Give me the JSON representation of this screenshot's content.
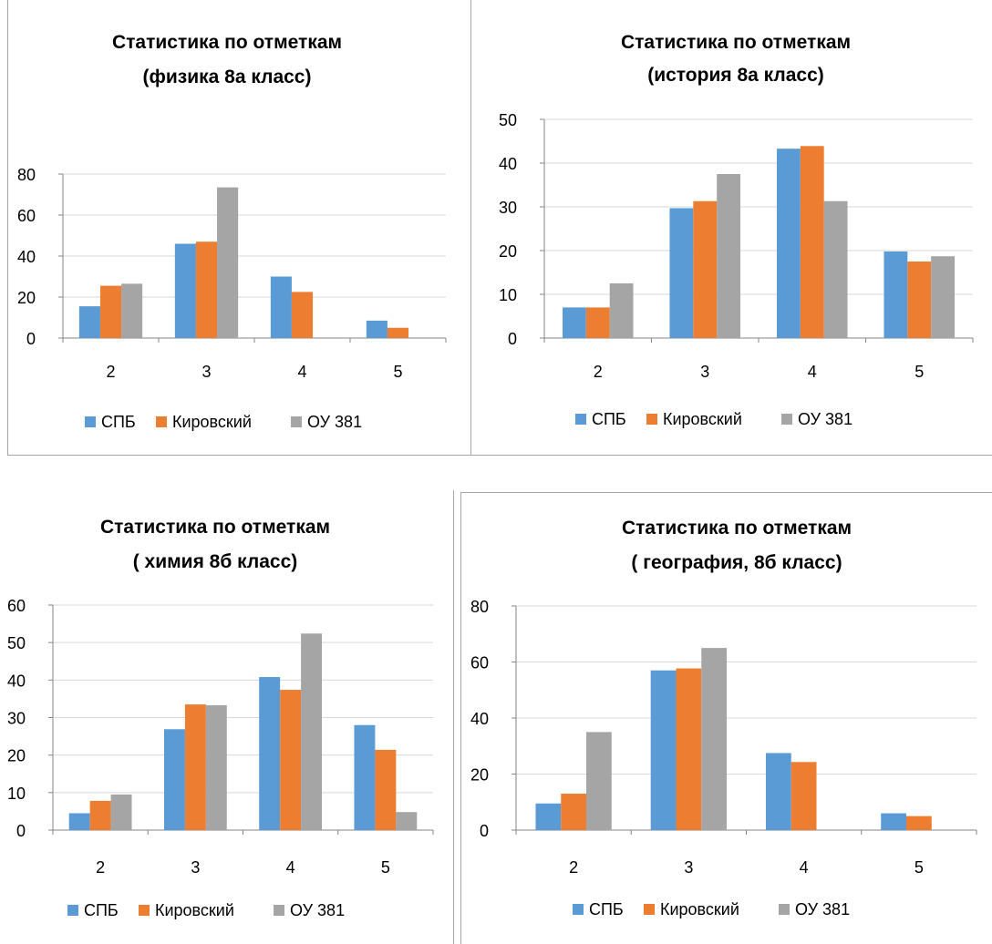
{
  "legend_labels": [
    "СПБ",
    "Кировский",
    "ОУ 381"
  ],
  "colors": [
    "#5b9bd5",
    "#ed7d31",
    "#a5a5a5"
  ],
  "chart_data": [
    {
      "type": "bar",
      "title": "Статистика по отметкам",
      "subtitle": "(физика 8а класс)",
      "categories": [
        "2",
        "3",
        "4",
        "5"
      ],
      "series": [
        {
          "name": "СПБ",
          "values": [
            15.5,
            46,
            30,
            8.5
          ]
        },
        {
          "name": "Кировский",
          "values": [
            25.5,
            47,
            22.5,
            5
          ]
        },
        {
          "name": "ОУ 381",
          "values": [
            26.5,
            73.5,
            0,
            0
          ]
        }
      ],
      "ylim": [
        0,
        80
      ],
      "yticks": [
        "0",
        "20",
        "40",
        "60",
        "80"
      ],
      "legend": "bottom",
      "grid": true
    },
    {
      "type": "bar",
      "title": "Статистика по отметкам",
      "subtitle": "(история 8а класс)",
      "categories": [
        "2",
        "3",
        "4",
        "5"
      ],
      "series": [
        {
          "name": "СПБ",
          "values": [
            7,
            29.7,
            43.3,
            19.8
          ]
        },
        {
          "name": "Кировский",
          "values": [
            7,
            31.3,
            43.9,
            17.5
          ]
        },
        {
          "name": "ОУ 381",
          "values": [
            12.5,
            37.5,
            31.3,
            18.7
          ]
        }
      ],
      "ylim": [
        0,
        50
      ],
      "yticks": [
        "0",
        "10",
        "20",
        "30",
        "40",
        "50"
      ],
      "legend": "bottom",
      "grid": true
    },
    {
      "type": "bar",
      "title": "Статистика по отметкам",
      "subtitle": "( химия 8б класс)",
      "categories": [
        "2",
        "3",
        "4",
        "5"
      ],
      "series": [
        {
          "name": "СПБ",
          "values": [
            4.5,
            26.9,
            40.8,
            28
          ]
        },
        {
          "name": "Кировский",
          "values": [
            7.8,
            33.5,
            37.4,
            21.4
          ]
        },
        {
          "name": "ОУ 381",
          "values": [
            9.5,
            33.3,
            52.4,
            4.8
          ]
        }
      ],
      "ylim": [
        0,
        60
      ],
      "yticks": [
        "0",
        "10",
        "20",
        "30",
        "40",
        "50",
        "60"
      ],
      "legend": "bottom",
      "grid": true
    },
    {
      "type": "bar",
      "title": "Статистика по отметкам",
      "subtitle": "( география, 8б класс)",
      "categories": [
        "2",
        "3",
        "4",
        "5"
      ],
      "series": [
        {
          "name": "СПБ",
          "values": [
            9.5,
            57,
            27.5,
            6
          ]
        },
        {
          "name": "Кировский",
          "values": [
            13,
            57.7,
            24.3,
            5
          ]
        },
        {
          "name": "ОУ 381",
          "values": [
            35,
            65,
            0,
            0
          ]
        }
      ],
      "ylim": [
        0,
        80
      ],
      "yticks": [
        "0",
        "20",
        "40",
        "60",
        "80"
      ],
      "legend": "bottom",
      "grid": true
    }
  ]
}
